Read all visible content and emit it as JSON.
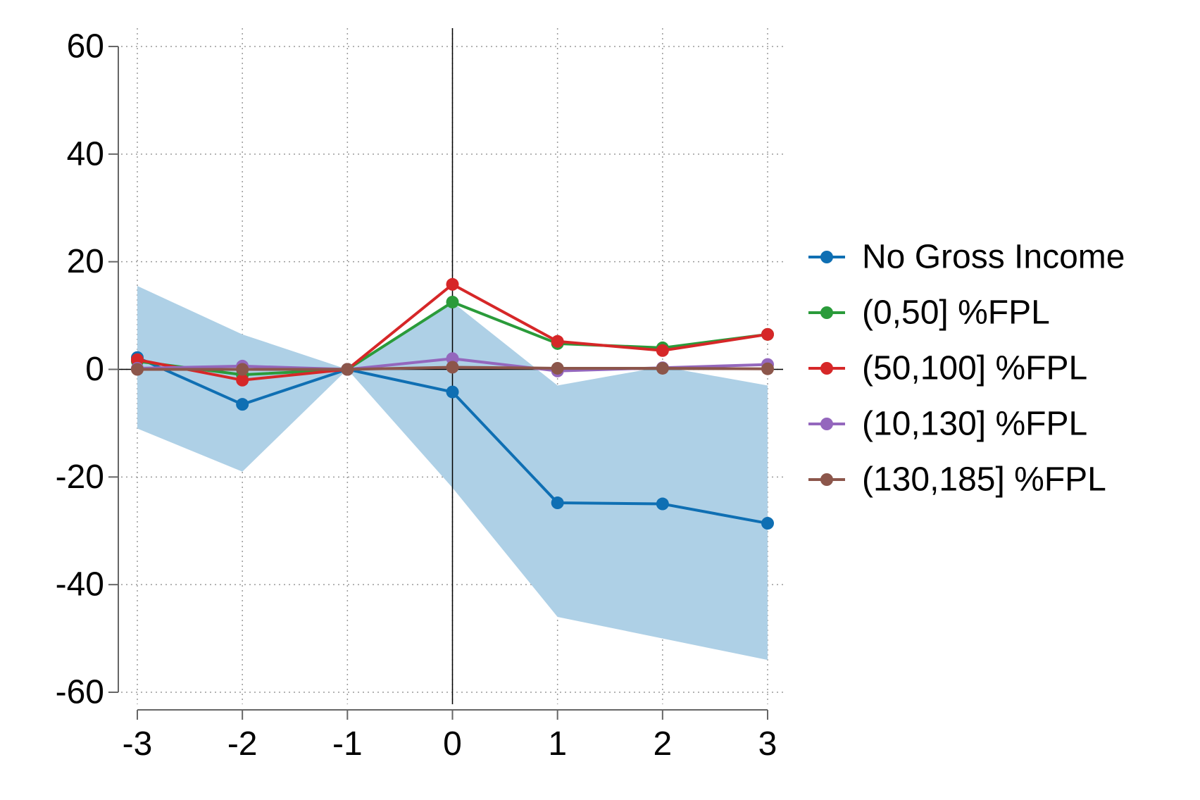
{
  "chart_data": {
    "type": "line",
    "title": "",
    "xlabel": "",
    "ylabel": "",
    "x": [
      -3,
      -2,
      -1,
      0,
      1,
      2,
      3
    ],
    "xlim": [
      -3,
      3
    ],
    "ylim": [
      -60,
      60
    ],
    "xticks": [
      "-3",
      "-2",
      "-1",
      "0",
      "1",
      "2",
      "3"
    ],
    "yticks": [
      "60",
      "40",
      "20",
      "0",
      "-20",
      "-40",
      "-60"
    ],
    "ytick_values": [
      60,
      40,
      20,
      0,
      -20,
      -40,
      -60
    ],
    "grid": true,
    "reference_lines": {
      "vertical_x": 0,
      "horizontal_y": 0
    },
    "confidence_band": {
      "series": "No Gross Income",
      "color": "#aed0e6",
      "lower": [
        -11,
        -19,
        0,
        -22,
        -46,
        -50,
        -54
      ],
      "upper": [
        15.5,
        6.5,
        0,
        12.5,
        -3,
        0.5,
        -3
      ]
    },
    "legend_position": "right",
    "series": [
      {
        "name": "No Gross Income",
        "color": "#0f6fb3",
        "values": [
          2.2,
          -6.5,
          0,
          -4.2,
          -24.8,
          -25,
          -28.6
        ]
      },
      {
        "name": "(0,50] %FPL",
        "color": "#2a9b3a",
        "values": [
          1.5,
          -1,
          0,
          12.5,
          4.8,
          4,
          6.5
        ]
      },
      {
        "name": "(50,100] %FPL",
        "color": "#d62728",
        "values": [
          1.8,
          -2,
          0,
          15.8,
          5.2,
          3.5,
          6.5
        ]
      },
      {
        "name": "(10,130] %FPL",
        "color": "#9467bd",
        "values": [
          0.2,
          0.6,
          0,
          2,
          -0.3,
          0.3,
          0.9
        ]
      },
      {
        "name": "(130,185] %FPL",
        "color": "#8c564b",
        "values": [
          0,
          0,
          0,
          0.4,
          0.2,
          0.2,
          0.1
        ]
      }
    ]
  }
}
